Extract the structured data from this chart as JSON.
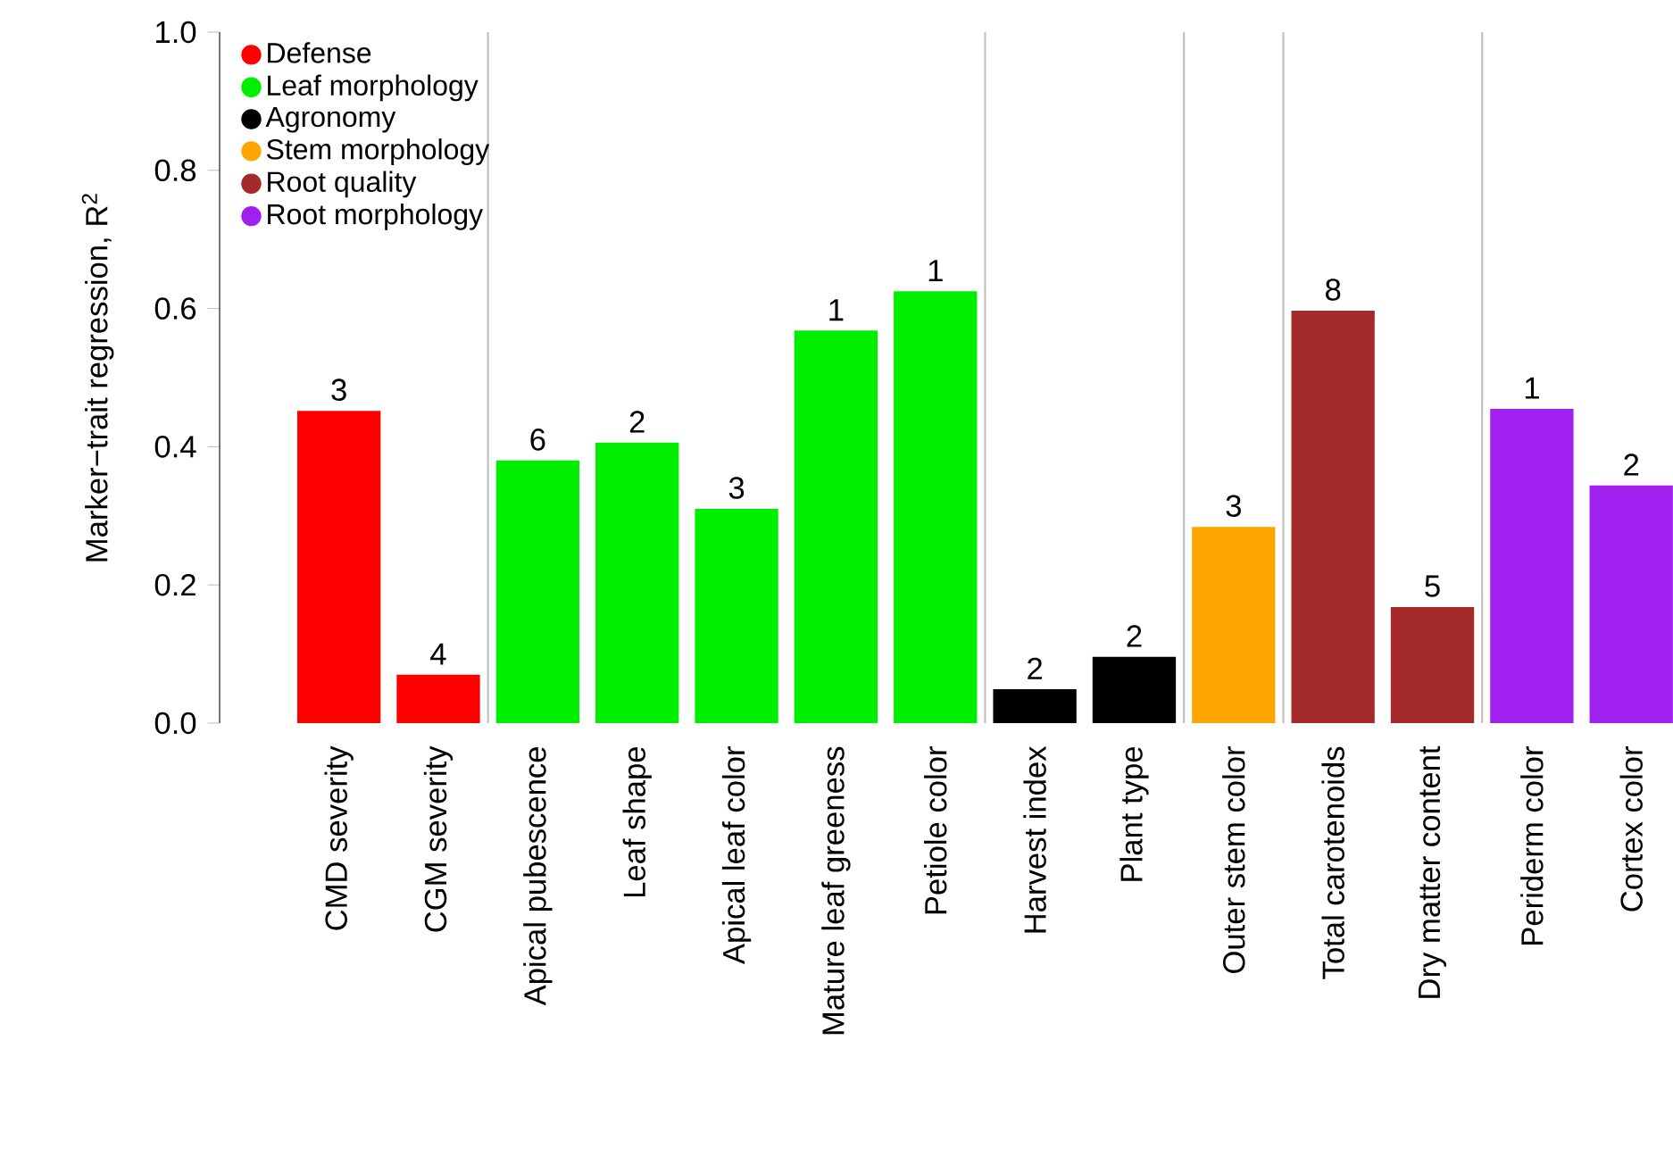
{
  "chart_data": {
    "type": "bar",
    "ylabel": "Marker−trait regression, R$^{2}$",
    "categories": [
      "CMD severity",
      "CGM severity",
      "Apical pubescence",
      "Leaf shape",
      "Apical leaf color",
      "Mature leaf greeness",
      "Petiole color",
      "Harvest index",
      "Plant type",
      "Outer stem color",
      "Total carotenoids",
      "Dry matter content",
      "Periderm color",
      "Cortex color"
    ],
    "series": [
      {
        "name": "Defense",
        "color": "#ff0000",
        "values": [
          0.452,
          0.07,
          null,
          null,
          null,
          null,
          null,
          null,
          null,
          null,
          null,
          null,
          null,
          null
        ]
      },
      {
        "name": "Leaf morphology",
        "color": "#00ee00",
        "values": [
          null,
          null,
          0.38,
          0.406,
          0.31,
          0.568,
          0.625,
          null,
          null,
          null,
          null,
          null,
          null,
          null
        ]
      },
      {
        "name": "Agronomy",
        "color": "#000000",
        "values": [
          null,
          null,
          null,
          null,
          null,
          null,
          null,
          0.049,
          0.096,
          null,
          null,
          null,
          null,
          null
        ]
      },
      {
        "name": "Stem morphology",
        "color": "#ffa500",
        "values": [
          null,
          null,
          null,
          null,
          null,
          null,
          null,
          null,
          null,
          0.284,
          null,
          null,
          null,
          null
        ]
      },
      {
        "name": "Root quality",
        "color": "#a52a2a",
        "values": [
          null,
          null,
          null,
          null,
          null,
          null,
          null,
          null,
          null,
          null,
          0.597,
          0.168,
          null,
          null
        ]
      },
      {
        "name": "Root morphology",
        "color": "#a020f0",
        "values": [
          null,
          null,
          null,
          null,
          null,
          null,
          null,
          null,
          null,
          null,
          null,
          null,
          0.455,
          0.344
        ]
      }
    ],
    "ylim": [
      0,
      1
    ],
    "yticks": [
      {
        "value": 0,
        "label": "0.0"
      },
      {
        "value": 0.2,
        "label": "0.2"
      },
      {
        "value": 0.4,
        "label": "0.4"
      },
      {
        "value": 0.6,
        "label": "0.6"
      },
      {
        "value": 0.8,
        "label": "0.8"
      },
      {
        "value": 1,
        "label": "1.0"
      }
    ],
    "annotations": [
      {
        "text": "3",
        "x": "CMD severity",
        "y": 0.452
      },
      {
        "text": "4",
        "x": "CGM severity",
        "y": 0.07
      },
      {
        "text": "6",
        "x": "Apical pubescence",
        "y": 0.38
      },
      {
        "text": "2",
        "x": "Leaf shape",
        "y": 0.406
      },
      {
        "text": "3",
        "x": "Apical leaf color",
        "y": 0.31
      },
      {
        "text": "1",
        "x": "Mature leaf greeness",
        "y": 0.568
      },
      {
        "text": "1",
        "x": "Petiole color",
        "y": 0.625
      },
      {
        "text": "2",
        "x": "Harvest index",
        "y": 0.049
      },
      {
        "text": "2",
        "x": "Plant type",
        "y": 0.096
      },
      {
        "text": "3",
        "x": "Outer stem color",
        "y": 0.284
      },
      {
        "text": "8",
        "x": "Total carotenoids",
        "y": 0.597
      },
      {
        "text": "5",
        "x": "Dry matter content",
        "y": 0.168
      },
      {
        "text": "1",
        "x": "Periderm color",
        "y": 0.455
      },
      {
        "text": "2",
        "x": "Cortex color",
        "y": 0.344
      }
    ],
    "legend": "top left",
    "marker": "circle",
    "grid": false
  }
}
